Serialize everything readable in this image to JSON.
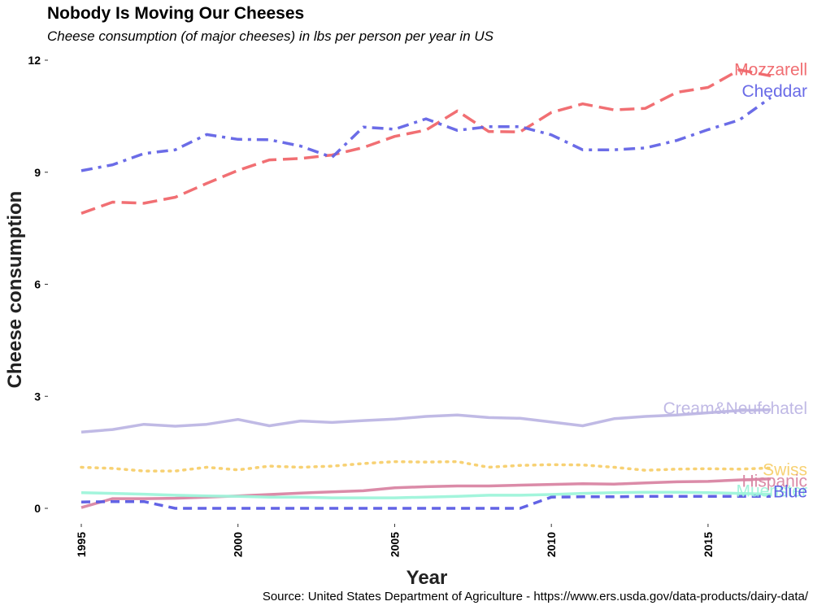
{
  "header": {
    "title": "Nobody Is Moving Our Cheeses",
    "subtitle": "Cheese consumption (of major cheeses) in lbs per person per year in US"
  },
  "caption": "Source: United States Department of Agriculture - https://www.ers.usda.gov/data-products/dairy-data/",
  "chart_data": {
    "type": "line",
    "title": "Nobody Is Moving Our Cheeses",
    "subtitle": "Cheese consumption (of major cheeses) in lbs per person per year in US",
    "xlabel": "Year",
    "ylabel": "Cheese consumption",
    "xlim": [
      1995,
      2017
    ],
    "ylim": [
      0,
      12
    ],
    "x_ticks": [
      1995,
      2000,
      2005,
      2010,
      2015
    ],
    "y_ticks": [
      0,
      3,
      6,
      9,
      12
    ],
    "grid": false,
    "legend": "direct labels at line ends",
    "x": [
      1995,
      1996,
      1997,
      1998,
      1999,
      2000,
      2001,
      2002,
      2003,
      2004,
      2005,
      2006,
      2007,
      2008,
      2009,
      2010,
      2011,
      2012,
      2013,
      2014,
      2015,
      2016,
      2017
    ],
    "series": [
      {
        "name": "Mozzarell",
        "color": "#f0676b",
        "dash": "long-dash",
        "values": [
          7.9,
          8.2,
          8.17,
          8.33,
          8.7,
          9.05,
          9.33,
          9.37,
          9.46,
          9.66,
          9.96,
          10.13,
          10.64,
          10.09,
          10.08,
          10.6,
          10.83,
          10.67,
          10.71,
          11.14,
          11.27,
          11.74,
          11.58
        ]
      },
      {
        "name": "Cheddar",
        "color": "#6364e6",
        "dash": "dash-dot",
        "values": [
          9.04,
          9.2,
          9.5,
          9.6,
          10.01,
          9.88,
          9.87,
          9.7,
          9.4,
          10.21,
          10.15,
          10.43,
          10.12,
          10.22,
          10.22,
          10.0,
          9.6,
          9.6,
          9.65,
          9.85,
          10.14,
          10.4,
          11.0
        ]
      },
      {
        "name": "Cream&Neufchatel",
        "color": "#bdb6e4",
        "dash": "solid",
        "values": [
          2.04,
          2.11,
          2.25,
          2.2,
          2.25,
          2.38,
          2.21,
          2.34,
          2.3,
          2.35,
          2.39,
          2.46,
          2.5,
          2.43,
          2.41,
          2.31,
          2.21,
          2.4,
          2.46,
          2.5,
          2.56,
          2.62,
          2.64
        ]
      },
      {
        "name": "Swiss",
        "color": "#f7cf6c",
        "dash": "dotted",
        "values": [
          1.1,
          1.07,
          1.0,
          1.0,
          1.1,
          1.03,
          1.13,
          1.1,
          1.13,
          1.2,
          1.25,
          1.24,
          1.25,
          1.1,
          1.15,
          1.17,
          1.16,
          1.1,
          1.02,
          1.05,
          1.06,
          1.05,
          1.08
        ]
      },
      {
        "name": "Hispanic",
        "color": "#d985a3",
        "dash": "solid",
        "values": [
          0.02,
          0.26,
          0.26,
          0.27,
          0.3,
          0.33,
          0.37,
          0.41,
          0.44,
          0.47,
          0.55,
          0.58,
          0.6,
          0.6,
          0.62,
          0.64,
          0.66,
          0.65,
          0.68,
          0.71,
          0.72,
          0.76,
          0.79
        ]
      },
      {
        "name": "Muenster",
        "color": "#9ef4da",
        "dash": "solid",
        "values": [
          0.42,
          0.4,
          0.38,
          0.35,
          0.33,
          0.32,
          0.3,
          0.3,
          0.28,
          0.28,
          0.28,
          0.3,
          0.32,
          0.35,
          0.35,
          0.37,
          0.4,
          0.42,
          0.43,
          0.43,
          0.42,
          0.4,
          0.38
        ]
      },
      {
        "name": "Blue",
        "color": "#5a5be4",
        "dash": "short-dash",
        "values": [
          0.17,
          0.18,
          0.18,
          0.0,
          0.0,
          0.0,
          0.0,
          0.0,
          0.0,
          0.0,
          0.0,
          0.0,
          0.0,
          0.0,
          0.0,
          0.3,
          0.31,
          0.31,
          0.32,
          0.32,
          0.32,
          0.32,
          0.32
        ]
      }
    ]
  }
}
